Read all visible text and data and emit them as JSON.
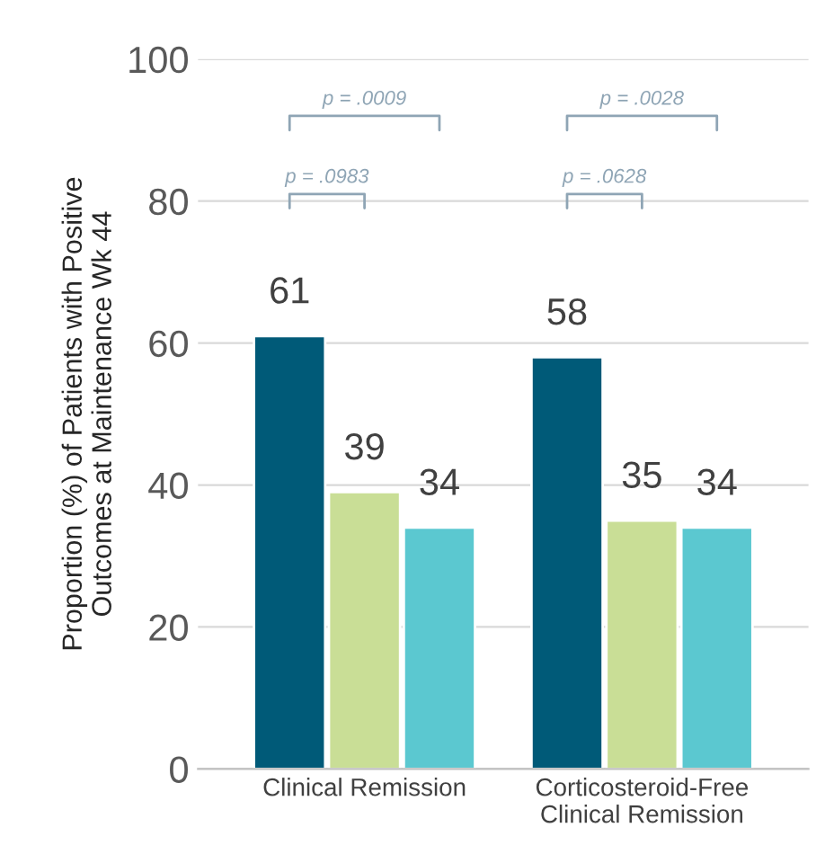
{
  "chart_data": {
    "type": "bar",
    "ylabel": "Proportion (%) of Patients with Positive\nOutcomes at Maintenance Wk 44",
    "categories": [
      "Clinical Remission",
      "Corticosteroid-Free\nClinical Remission"
    ],
    "series": [
      {
        "color": "#005a78",
        "values": [
          61,
          58
        ]
      },
      {
        "color": "#c9de96",
        "values": [
          39,
          35
        ]
      },
      {
        "color": "#5bc8d0",
        "values": [
          34,
          34
        ]
      }
    ],
    "ylim": [
      0,
      100
    ],
    "yticks": [
      0,
      20,
      40,
      60,
      80,
      100
    ],
    "grid": "y",
    "data_labels": true,
    "annotations": [
      "p = .0009",
      "p = .0983",
      "p = .0028",
      "p = .0628"
    ]
  }
}
